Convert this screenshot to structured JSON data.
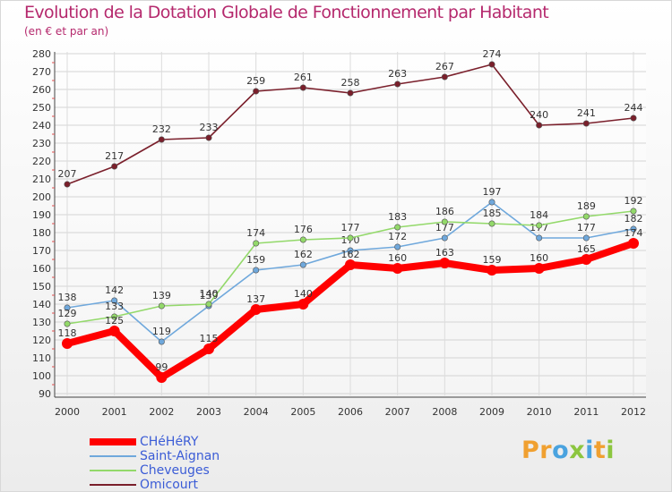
{
  "header": {
    "title": "Evolution de la Dotation Globale de Fonctionnement par Habitant",
    "subtitle": "(en € et par an)"
  },
  "chart_data": {
    "type": "line",
    "title": "Evolution de la Dotation Globale de Fonctionnement par Habitant",
    "subtitle": "(en € et par an)",
    "xlabel": "",
    "ylabel": "",
    "ylim": [
      90,
      280
    ],
    "ytick_step": 10,
    "grid": true,
    "legend": "bottom-left",
    "categories": [
      "2000",
      "2001",
      "2002",
      "2003",
      "2004",
      "2005",
      "2006",
      "2007",
      "2008",
      "2009",
      "2010",
      "2011",
      "2012"
    ],
    "series": [
      {
        "name": "Omicourt",
        "color": "#7a1f2b",
        "values": [
          207,
          217,
          232,
          233,
          259,
          261,
          258,
          263,
          267,
          274,
          240,
          241,
          244
        ]
      },
      {
        "name": "Saint-Aignan",
        "color": "#6fa8dc",
        "values": [
          138,
          142,
          119,
          139,
          159,
          162,
          170,
          172,
          177,
          197,
          177,
          177,
          182
        ]
      },
      {
        "name": "Cheveuges",
        "color": "#93d96a",
        "values": [
          129,
          133,
          139,
          140,
          174,
          176,
          177,
          183,
          186,
          185,
          184,
          189,
          192
        ]
      },
      {
        "name": "CHéHéRY",
        "color": "#ff0000",
        "values": [
          118,
          125,
          99,
          115,
          137,
          140,
          162,
          160,
          163,
          159,
          160,
          165,
          174
        ]
      }
    ]
  },
  "legend": {
    "items": [
      {
        "label": "CHéHéRY",
        "color": "#ff0000"
      },
      {
        "label": "Saint-Aignan",
        "color": "#6fa8dc"
      },
      {
        "label": "Cheveuges",
        "color": "#93d96a"
      },
      {
        "label": "Omicourt",
        "color": "#7a1f2b"
      }
    ]
  },
  "brand": {
    "letters": [
      "P",
      "r",
      "o",
      "x",
      "i",
      "t",
      "i"
    ],
    "colors": [
      "#f0a030",
      "#f0a030",
      "#4aa3df",
      "#8cc63f",
      "#4aa3df",
      "#f0a030",
      "#8cc63f"
    ]
  }
}
